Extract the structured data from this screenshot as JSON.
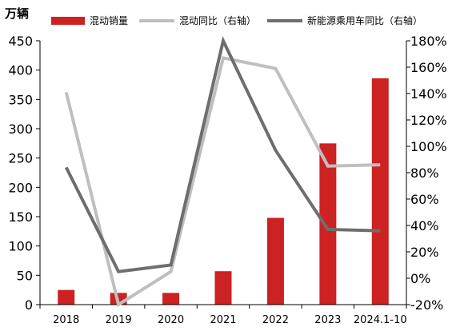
{
  "unit_label": "万辆",
  "colors": {
    "bar": "#cc2222",
    "hybrid_line": "#bfbfbf",
    "nev_line": "#6e6e6e",
    "axis": "#000000"
  },
  "legend": [
    {
      "label": "混动销量",
      "kind": "bar",
      "color": "#cc2222"
    },
    {
      "label": "混动同比（右轴）",
      "kind": "line",
      "color": "#bfbfbf"
    },
    {
      "label": "新能源乘用车同比（右轴）",
      "kind": "line",
      "color": "#6e6e6e"
    }
  ],
  "chart_data": {
    "type": "bar",
    "categories": [
      "2018",
      "2019",
      "2020",
      "2021",
      "2022",
      "2023",
      "2024.1-10"
    ],
    "series": [
      {
        "name": "混动销量",
        "type": "bar",
        "axis": "left",
        "values": [
          25,
          20,
          20,
          57,
          148,
          275,
          386
        ]
      },
      {
        "name": "混动同比（右轴）",
        "type": "line",
        "axis": "right",
        "values": [
          1.41,
          -0.2,
          0.05,
          1.67,
          1.59,
          0.85,
          0.86
        ]
      },
      {
        "name": "新能源乘用车同比（右轴）",
        "type": "line",
        "axis": "right",
        "values": [
          0.84,
          0.05,
          0.1,
          1.8,
          0.97,
          0.37,
          0.36
        ]
      }
    ],
    "y_left": {
      "min": 0,
      "max": 450,
      "ticks": [
        "0",
        "50",
        "100",
        "150",
        "200",
        "250",
        "300",
        "350",
        "400",
        "450"
      ]
    },
    "y_right": {
      "min": -0.2,
      "max": 1.8,
      "ticks": [
        "-20%",
        "0%",
        "20%",
        "40%",
        "60%",
        "80%",
        "100%",
        "120%",
        "140%",
        "160%",
        "180%"
      ]
    },
    "grid": false
  }
}
